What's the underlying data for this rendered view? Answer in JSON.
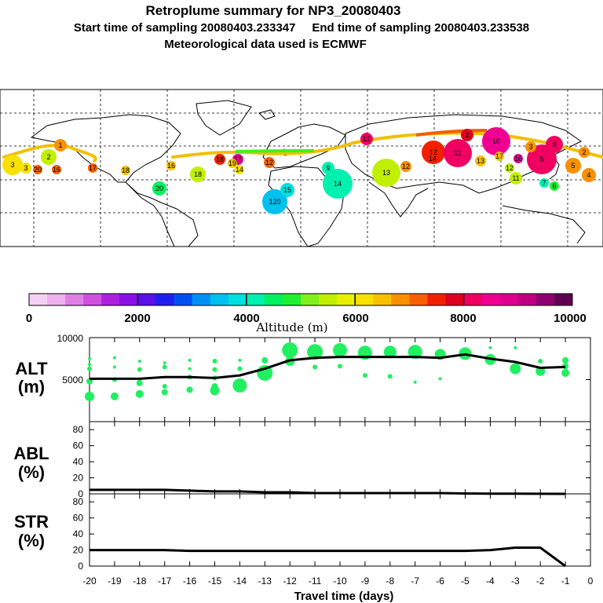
{
  "header": {
    "title": "Retroplume summary for NP3_20080403",
    "sampling_line": "Start time of sampling 20080403.233347     End time of sampling 20080403.233538",
    "met_line": "Meteorological data used is ECMWF"
  },
  "colorbar": {
    "title": "Altitude (m)",
    "tick_labels": [
      "0",
      "2000",
      "4000",
      "6000",
      "8000",
      "10000"
    ],
    "colors": [
      "#f5d0f5",
      "#eeb0ee",
      "#e080e6",
      "#d050e0",
      "#b020e0",
      "#8a10e8",
      "#5a10e8",
      "#2020ee",
      "#0050f0",
      "#0090f5",
      "#00c0f0",
      "#00e0e0",
      "#00f0b0",
      "#00f060",
      "#20f030",
      "#80f020",
      "#c0f000",
      "#e8f000",
      "#f8e000",
      "#f8c000",
      "#f89000",
      "#f86000",
      "#f02000",
      "#e00020",
      "#f00060",
      "#f00090",
      "#e00090",
      "#c00080",
      "#900070",
      "#600050"
    ]
  },
  "map": {
    "points": [
      {
        "label": "3",
        "color": "#f8e000"
      },
      {
        "label": "3",
        "color": "#f8e000"
      },
      {
        "label": "2",
        "color": "#c0f000"
      },
      {
        "label": "20",
        "color": "#f86000"
      },
      {
        "label": "16",
        "color": "#f86000"
      },
      {
        "label": "1",
        "color": "#f89000"
      },
      {
        "label": "17",
        "color": "#f86000"
      },
      {
        "label": "18",
        "color": "#f8c000"
      },
      {
        "label": "16",
        "color": "#f8c000"
      },
      {
        "label": "20",
        "color": "#00f060"
      },
      {
        "label": "18",
        "color": "#c0f000"
      },
      {
        "label": "18",
        "color": "#f02000"
      },
      {
        "label": "17",
        "color": "#e00090"
      },
      {
        "label": "19",
        "color": "#f8c000"
      },
      {
        "label": "14",
        "color": "#f8e000"
      },
      {
        "label": "12",
        "color": "#f86000"
      },
      {
        "label": "120",
        "color": "#00c0f0"
      },
      {
        "label": "15",
        "color": "#00e0e0"
      },
      {
        "label": "14",
        "color": "#00f0b0"
      },
      {
        "label": "9",
        "color": "#00f0b0"
      },
      {
        "label": "13",
        "color": "#c0f000"
      },
      {
        "label": "12",
        "color": "#f89000"
      },
      {
        "label": "12",
        "color": "#f02000"
      },
      {
        "label": "14",
        "color": "#f02000"
      },
      {
        "label": "11",
        "color": "#f00060"
      },
      {
        "label": "10",
        "color": "#f00090"
      },
      {
        "label": "13",
        "color": "#f8c000"
      },
      {
        "label": "17",
        "color": "#f8c000"
      },
      {
        "label": "16",
        "color": "#e00090"
      },
      {
        "label": "5",
        "color": "#f00060"
      },
      {
        "label": "8",
        "color": "#f00060"
      },
      {
        "label": "12",
        "color": "#c0f000"
      },
      {
        "label": "11",
        "color": "#c0f000"
      },
      {
        "label": "7",
        "color": "#00f0b0"
      },
      {
        "label": "6",
        "color": "#20f030"
      },
      {
        "label": "5",
        "color": "#f89000"
      },
      {
        "label": "4",
        "color": "#f89000"
      },
      {
        "label": "2",
        "color": "#f89000"
      },
      {
        "label": "3",
        "color": "#f89000"
      },
      {
        "label": "2",
        "color": "#e00020"
      },
      {
        "label": "12",
        "color": "#f00060"
      }
    ]
  },
  "panels": {
    "alt": {
      "label_top": "ALT",
      "label_bottom": "(m)",
      "tick_labels": [
        "10000",
        "5000"
      ]
    },
    "abl": {
      "label_top": "ABL",
      "label_bottom": "(%)",
      "tick_labels": [
        "80",
        "60",
        "40",
        "20",
        "0"
      ]
    },
    "str": {
      "label_top": "STR",
      "label_bottom": "(%)",
      "tick_labels": [
        "80",
        "60",
        "40",
        "20",
        "0"
      ]
    }
  },
  "chart_data": {
    "type": "line",
    "title": "Retroplume summary for NP3_20080403",
    "xlabel": "Travel time (days)",
    "x_tick_labels": [
      "-20",
      "-19",
      "-18",
      "-17",
      "-16",
      "-15",
      "-14",
      "-13",
      "-12",
      "-11",
      "-10",
      "-9",
      "-8",
      "-7",
      "-6",
      "-5",
      "-4",
      "-3",
      "-2",
      "-1",
      "0"
    ],
    "xlim": [
      -20,
      0
    ],
    "panels": [
      {
        "name": "ALT",
        "ylabel": "ALT (m)",
        "ylim": [
          0,
          10000
        ],
        "y_ticks": [
          5000,
          10000
        ],
        "line_x": [
          -20,
          -19,
          -18,
          -17,
          -16,
          -15,
          -14,
          -13,
          -12,
          -11,
          -10,
          -9,
          -8,
          -7,
          -6,
          -5,
          -4,
          -3,
          -2,
          -1
        ],
        "line_y": [
          5100,
          5100,
          5100,
          5300,
          5300,
          5200,
          5500,
          6300,
          7300,
          7600,
          7700,
          7700,
          7700,
          7700,
          7600,
          8000,
          7500,
          7100,
          6400,
          6500
        ],
        "cluster_points": [
          {
            "x": -20,
            "y": 3000
          },
          {
            "x": -20,
            "y": 4800
          },
          {
            "x": -20,
            "y": 6300
          },
          {
            "x": -20,
            "y": 6800
          },
          {
            "x": -20,
            "y": 7500
          },
          {
            "x": -19,
            "y": 3000
          },
          {
            "x": -19,
            "y": 5000
          },
          {
            "x": -19,
            "y": 6500
          },
          {
            "x": -19,
            "y": 7600
          },
          {
            "x": -18,
            "y": 3300
          },
          {
            "x": -18,
            "y": 4600
          },
          {
            "x": -18,
            "y": 6200
          },
          {
            "x": -18,
            "y": 7200
          },
          {
            "x": -17,
            "y": 3500
          },
          {
            "x": -17,
            "y": 4200
          },
          {
            "x": -17,
            "y": 6500
          },
          {
            "x": -17,
            "y": 7000
          },
          {
            "x": -16,
            "y": 3800
          },
          {
            "x": -16,
            "y": 5300
          },
          {
            "x": -16,
            "y": 6300
          },
          {
            "x": -16,
            "y": 7300
          },
          {
            "x": -15,
            "y": 3700
          },
          {
            "x": -15,
            "y": 4200
          },
          {
            "x": -15,
            "y": 5200
          },
          {
            "x": -15,
            "y": 6200
          },
          {
            "x": -15,
            "y": 7200
          },
          {
            "x": -14,
            "y": 4300
          },
          {
            "x": -14,
            "y": 6300
          },
          {
            "x": -14,
            "y": 7300
          },
          {
            "x": -13,
            "y": 5800
          },
          {
            "x": -13,
            "y": 7300
          },
          {
            "x": -12,
            "y": 7200
          },
          {
            "x": -12,
            "y": 8500
          },
          {
            "x": -11,
            "y": 6500
          },
          {
            "x": -11,
            "y": 8300
          },
          {
            "x": -10,
            "y": 8500
          },
          {
            "x": -10,
            "y": 6600
          },
          {
            "x": -9,
            "y": 8200
          },
          {
            "x": -9,
            "y": 5500
          },
          {
            "x": -8,
            "y": 8300
          },
          {
            "x": -8,
            "y": 5400
          },
          {
            "x": -7,
            "y": 8300
          },
          {
            "x": -7,
            "y": 4700
          },
          {
            "x": -6,
            "y": 8000
          },
          {
            "x": -6,
            "y": 5100
          },
          {
            "x": -5,
            "y": 8100
          },
          {
            "x": -4,
            "y": 7400
          },
          {
            "x": -4,
            "y": 8800
          },
          {
            "x": -3,
            "y": 6300
          },
          {
            "x": -3,
            "y": 8800
          },
          {
            "x": -2,
            "y": 6000
          },
          {
            "x": -2,
            "y": 7200
          },
          {
            "x": -1,
            "y": 5800
          },
          {
            "x": -1,
            "y": 6600
          },
          {
            "x": -1,
            "y": 7300
          }
        ]
      },
      {
        "name": "ABL",
        "ylabel": "ABL (%)",
        "ylim": [
          0,
          90
        ],
        "y_ticks": [
          0,
          20,
          40,
          60,
          80
        ],
        "line_x": [
          -20,
          -19,
          -18,
          -17,
          -16,
          -15,
          -14,
          -13,
          -12,
          -11,
          -10,
          -9,
          -8,
          -7,
          -6,
          -5,
          -4,
          -3,
          -2,
          -1
        ],
        "line_y": [
          5,
          5,
          5,
          5,
          4,
          3,
          3,
          2,
          2,
          1,
          1,
          1,
          1,
          1,
          1,
          0.5,
          0.3,
          0.2,
          0.1,
          0
        ]
      },
      {
        "name": "STR",
        "ylabel": "STR (%)",
        "ylim": [
          0,
          90
        ],
        "y_ticks": [
          0,
          20,
          40,
          60,
          80
        ],
        "line_x": [
          -20,
          -19,
          -18,
          -17,
          -16,
          -15,
          -14,
          -13,
          -12,
          -11,
          -10,
          -9,
          -8,
          -7,
          -6,
          -5,
          -4,
          -3,
          -2,
          -1
        ],
        "line_y": [
          20,
          20,
          20,
          20,
          19,
          19,
          19,
          19,
          19,
          19,
          19,
          19,
          19,
          19,
          19,
          19,
          20,
          23,
          23,
          0
        ]
      }
    ]
  }
}
